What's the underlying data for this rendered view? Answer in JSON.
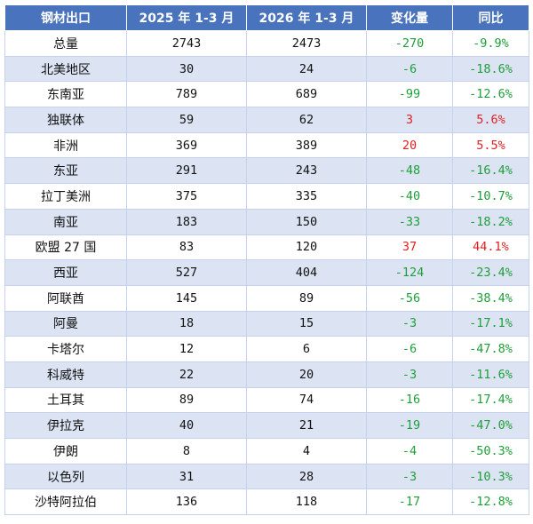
{
  "table": {
    "headers": [
      "钢材出口",
      "2025 年 1-3 月",
      "2026 年 1-3 月",
      "变化量",
      "同比"
    ],
    "rows": [
      {
        "region": "总量",
        "y2025": "2743",
        "y2026": "2473",
        "change": "-270",
        "yoy": "-9.9%",
        "trend": "neg"
      },
      {
        "region": "北美地区",
        "y2025": "30",
        "y2026": "24",
        "change": "-6",
        "yoy": "-18.6%",
        "trend": "neg"
      },
      {
        "region": "东南亚",
        "y2025": "789",
        "y2026": "689",
        "change": "-99",
        "yoy": "-12.6%",
        "trend": "neg"
      },
      {
        "region": "独联体",
        "y2025": "59",
        "y2026": "62",
        "change": "3",
        "yoy": "5.6%",
        "trend": "pos"
      },
      {
        "region": "非洲",
        "y2025": "369",
        "y2026": "389",
        "change": "20",
        "yoy": "5.5%",
        "trend": "pos"
      },
      {
        "region": "东亚",
        "y2025": "291",
        "y2026": "243",
        "change": "-48",
        "yoy": "-16.4%",
        "trend": "neg"
      },
      {
        "region": "拉丁美洲",
        "y2025": "375",
        "y2026": "335",
        "change": "-40",
        "yoy": "-10.7%",
        "trend": "neg"
      },
      {
        "region": "南亚",
        "y2025": "183",
        "y2026": "150",
        "change": "-33",
        "yoy": "-18.2%",
        "trend": "neg"
      },
      {
        "region": "欧盟 27 国",
        "y2025": "83",
        "y2026": "120",
        "change": "37",
        "yoy": "44.1%",
        "trend": "pos"
      },
      {
        "region": "西亚",
        "y2025": "527",
        "y2026": "404",
        "change": "-124",
        "yoy": "-23.4%",
        "trend": "neg"
      },
      {
        "region": "阿联酋",
        "y2025": "145",
        "y2026": "89",
        "change": "-56",
        "yoy": "-38.4%",
        "trend": "neg"
      },
      {
        "region": "阿曼",
        "y2025": "18",
        "y2026": "15",
        "change": "-3",
        "yoy": "-17.1%",
        "trend": "neg"
      },
      {
        "region": "卡塔尔",
        "y2025": "12",
        "y2026": "6",
        "change": "-6",
        "yoy": "-47.8%",
        "trend": "neg"
      },
      {
        "region": "科威特",
        "y2025": "22",
        "y2026": "20",
        "change": "-3",
        "yoy": "-11.6%",
        "trend": "neg"
      },
      {
        "region": "土耳其",
        "y2025": "89",
        "y2026": "74",
        "change": "-16",
        "yoy": "-17.4%",
        "trend": "neg"
      },
      {
        "region": "伊拉克",
        "y2025": "40",
        "y2026": "21",
        "change": "-19",
        "yoy": "-47.0%",
        "trend": "neg"
      },
      {
        "region": "伊朗",
        "y2025": "8",
        "y2026": "4",
        "change": "-4",
        "yoy": "-50.3%",
        "trend": "neg"
      },
      {
        "region": "以色列",
        "y2025": "31",
        "y2026": "28",
        "change": "-3",
        "yoy": "-10.3%",
        "trend": "neg"
      },
      {
        "region": "沙特阿拉伯",
        "y2025": "136",
        "y2026": "118",
        "change": "-17",
        "yoy": "-12.8%",
        "trend": "neg"
      }
    ]
  },
  "colors": {
    "header_bg": "#4a73bd",
    "stripe": "#dce4f4",
    "negative": "#1e9e3a",
    "positive": "#e02020"
  }
}
